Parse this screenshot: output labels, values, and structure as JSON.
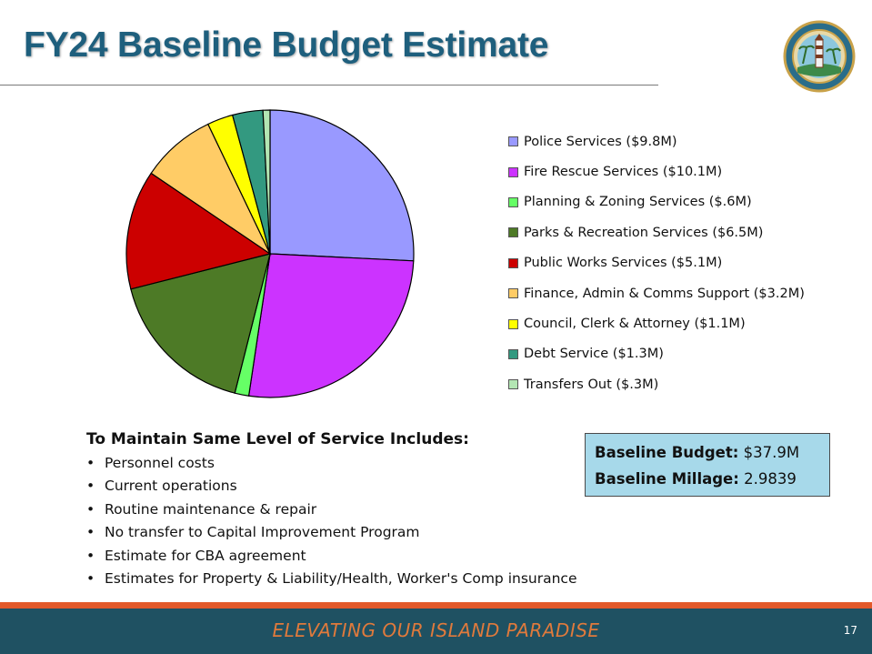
{
  "title": "FY24 Baseline Budget Estimate",
  "chart_data": {
    "type": "pie",
    "title": "",
    "slices": [
      {
        "label": "Police Services ($9.8M)",
        "value": 9.8,
        "color": "#9999ff"
      },
      {
        "label": "Fire Rescue Services ($10.1M)",
        "value": 10.1,
        "color": "#cc33ff"
      },
      {
        "label": "Planning & Zoning Services ($.6M)",
        "value": 0.6,
        "color": "#66ff66"
      },
      {
        "label": "Parks & Recreation Services ($6.5M)",
        "value": 6.5,
        "color": "#4d7a26"
      },
      {
        "label": "Public Works Services ($5.1M)",
        "value": 5.1,
        "color": "#cc0000"
      },
      {
        "label": "Finance, Admin & Comms Support ($3.2M)",
        "value": 3.2,
        "color": "#ffcc66"
      },
      {
        "label": "Council, Clerk & Attorney ($1.1M)",
        "value": 1.1,
        "color": "#ffff00"
      },
      {
        "label": "Debt Service ($1.3M)",
        "value": 1.3,
        "color": "#339980"
      },
      {
        "label": "Transfers Out ($.3M)",
        "value": 0.3,
        "color": "#b3e6b3"
      }
    ],
    "legend_position": "right"
  },
  "includes": {
    "heading": "To Maintain Same Level of Service Includes:",
    "items": [
      "Personnel costs",
      "Current operations",
      "Routine maintenance & repair",
      "No transfer to Capital Improvement Program",
      "Estimate for CBA agreement",
      "Estimates for Property & Liability/Health, Worker's Comp insurance"
    ]
  },
  "baseline": {
    "budget_label": "Baseline Budget:",
    "budget_value": "$37.9M",
    "millage_label": "Baseline Millage:",
    "millage_value": "2.9839"
  },
  "footer": {
    "tagline": "ELEVATING OUR ISLAND PARADISE",
    "page_number": "17"
  },
  "colors": {
    "title": "#1e5f7d",
    "footer_bg": "#1f5162",
    "footer_band": "#e2592a",
    "tagline": "#e07a3c",
    "baseline_box": "#a7d9ea"
  },
  "icons": {
    "seal": "village-seal-icon"
  }
}
